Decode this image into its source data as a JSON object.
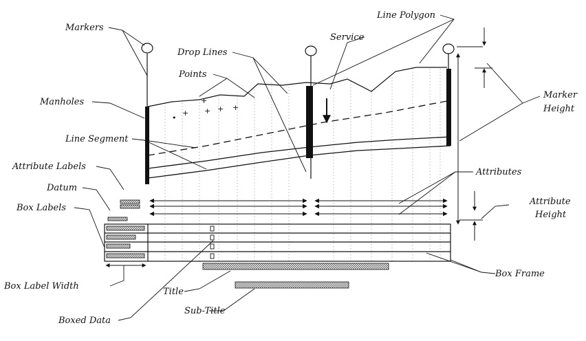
{
  "labels": {
    "markers": "Markers",
    "drop_lines": "Drop Lines",
    "points": "Points",
    "manholes": "Manholes",
    "line_segment": "Line Segment",
    "attribute_labels": "Attribute Labels",
    "datum": "Datum",
    "box_labels": "Box Labels",
    "box_label_width": "Box Label Width",
    "boxed_data": "Boxed Data",
    "title": "Title",
    "sub_title": "Sub-Title",
    "box_frame": "Box Frame",
    "attributes": "Attributes",
    "attribute_height_1": "Attribute",
    "attribute_height_2": "Height",
    "marker_height_1": "Marker",
    "marker_height_2": "Height",
    "service": "Service",
    "line_polygon": "Line Polygon"
  },
  "colors": {
    "ink": "#111111",
    "hatch": "#7a7a7a",
    "background": "#ffffff"
  }
}
